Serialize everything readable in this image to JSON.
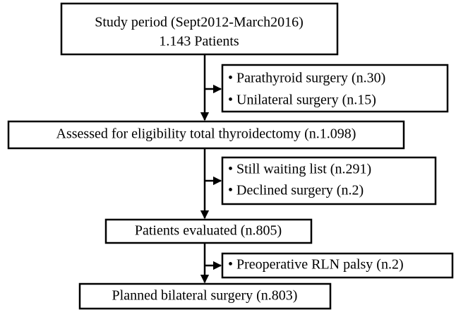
{
  "nodes": [
    {
      "lines": [
        "Study period (Sept2012-March2016)",
        "1.143 Patients"
      ]
    },
    {
      "lines": [
        "• Parathyroid surgery (n.30)",
        "• Unilateral surgery (n.15)"
      ]
    },
    {
      "lines": [
        "Assessed for eligibility total thyroidectomy (n.1.098)"
      ]
    },
    {
      "lines": [
        "• Still waiting list (n.291)",
        "• Declined surgery (n.2)"
      ]
    },
    {
      "lines": [
        "Patients evaluated (n.805)"
      ]
    },
    {
      "lines": [
        "• Preoperative RLN palsy (n.2)"
      ]
    },
    {
      "lines": [
        "Planned bilateral surgery (n.803)"
      ]
    }
  ]
}
